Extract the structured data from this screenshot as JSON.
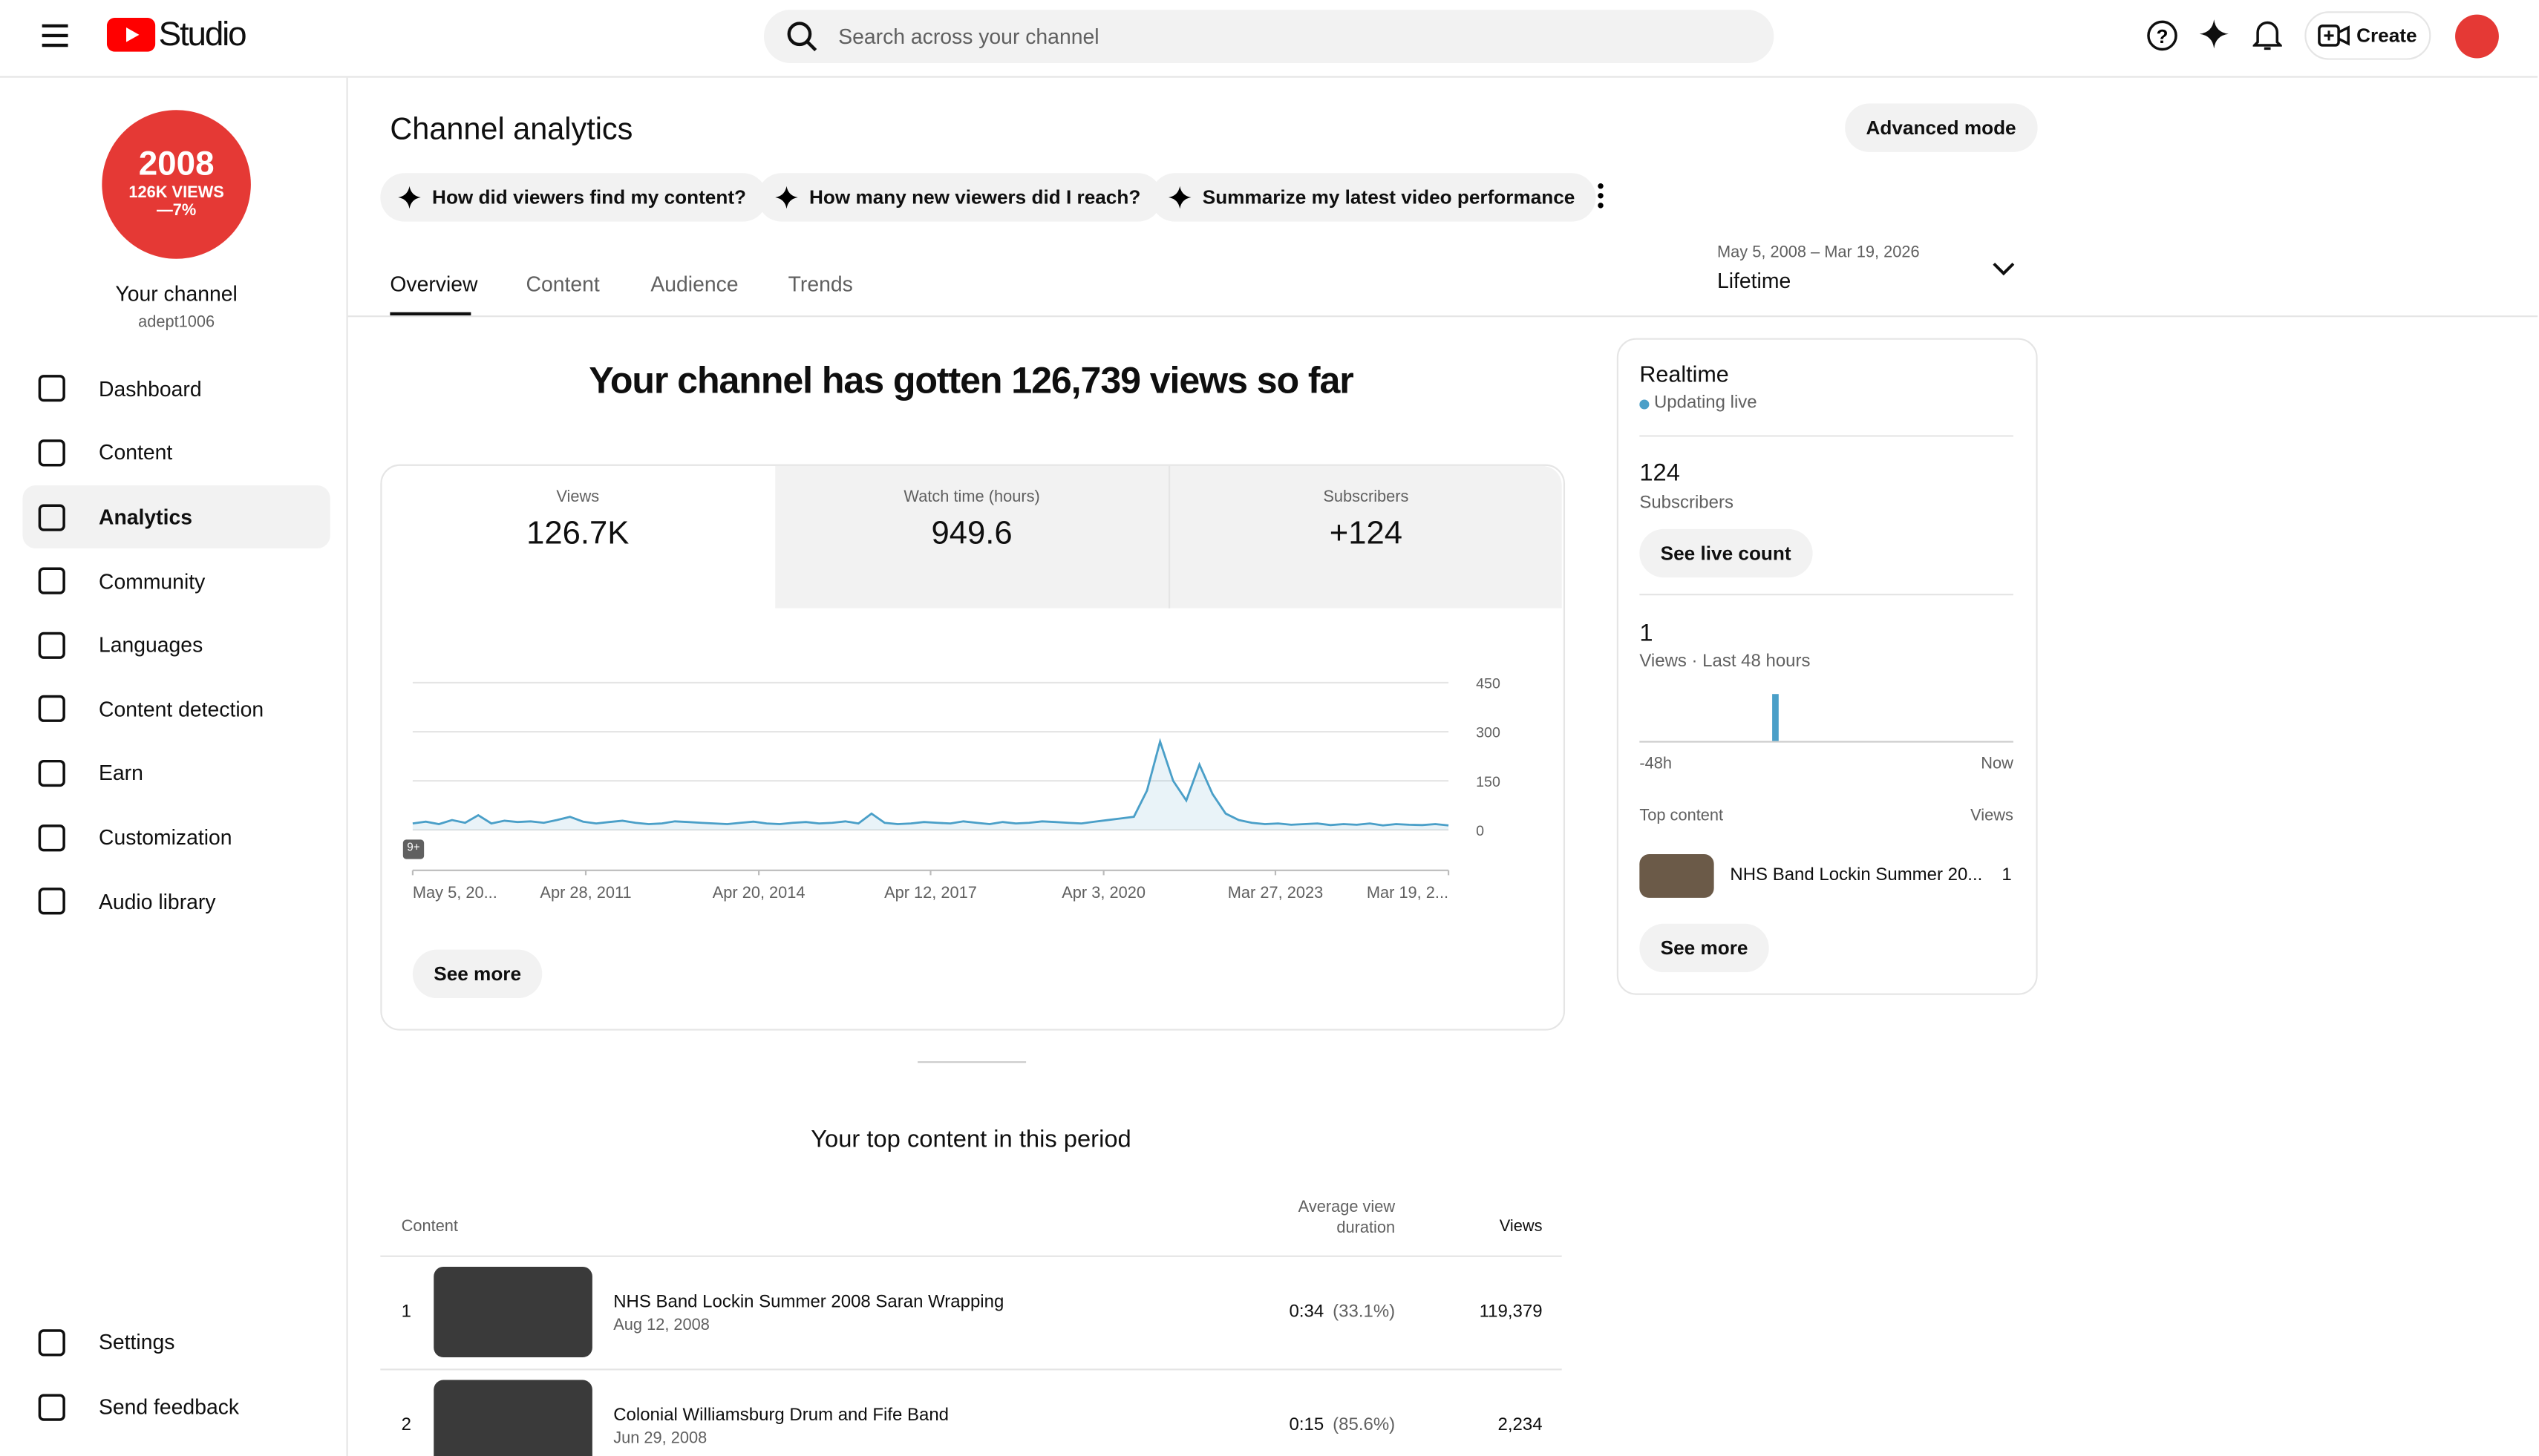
{
  "header": {
    "brand": "Studio",
    "search_placeholder": "Search across your channel",
    "create": "Create"
  },
  "sidebar": {
    "avatar": {
      "year": "2008",
      "line2": "126K VIEWS",
      "line3": "—7%"
    },
    "channel_name": "Your channel",
    "handle": "adept1006",
    "nav": [
      "Dashboard",
      "Content",
      "Analytics",
      "Community",
      "Languages",
      "Content detection",
      "Earn",
      "Customization",
      "Audio library"
    ],
    "footer_nav": [
      "Settings",
      "Send feedback"
    ]
  },
  "main": {
    "title": "Channel analytics",
    "advanced": "Advanced mode",
    "prompts": [
      "How did viewers find my content?",
      "How many new viewers did I reach?",
      "Summarize my latest video performance"
    ],
    "tabs": [
      "Overview",
      "Content",
      "Audience",
      "Trends"
    ],
    "date_range": {
      "range": "May 5, 2008 – Mar 19, 2026",
      "label": "Lifetime"
    },
    "headline": "Your channel has gotten 126,739 views so far",
    "metrics": [
      {
        "label": "Views",
        "value": "126.7K"
      },
      {
        "label": "Watch time (hours)",
        "value": "949.6"
      },
      {
        "label": "Subscribers",
        "value": "+124"
      }
    ],
    "see_more": "See more",
    "top_content": {
      "title": "Your top content in this period",
      "columns": [
        "Content",
        "Average view duration",
        "Views"
      ],
      "rows": [
        {
          "rank": 1,
          "title": "NHS Band Lockin Summer 2008 Saran Wrapping",
          "date": "Aug 12, 2008",
          "duration": "0:34",
          "percent": "(33.1%)",
          "views": "119,379"
        },
        {
          "rank": 2,
          "title": "Colonial Williamsburg Drum and Fife Band",
          "date": "Jun 29, 2008",
          "duration": "0:15",
          "percent": "(85.6%)",
          "views": "2,234"
        }
      ]
    }
  },
  "chart_data": {
    "type": "line",
    "color": "#4a9fc8",
    "annotation": "9+",
    "ylim": [
      0,
      450
    ],
    "yticks": [
      0,
      150,
      300,
      450
    ],
    "xlim": [
      0,
      79
    ],
    "xticks": [
      {
        "value": 0,
        "label": "May 5, 20..."
      },
      {
        "value": 13.2,
        "label": "Apr 28, 2011"
      },
      {
        "value": 26.4,
        "label": "Apr 20, 2014"
      },
      {
        "value": 39.5,
        "label": "Apr 12, 2017"
      },
      {
        "value": 52.7,
        "label": "Apr 3, 2020"
      },
      {
        "value": 65.8,
        "label": "Mar 27, 2023"
      },
      {
        "value": 79,
        "label": "Mar 19, 2..."
      }
    ],
    "values": [
      20,
      25,
      18,
      30,
      22,
      45,
      20,
      28,
      24,
      26,
      22,
      30,
      40,
      25,
      20,
      24,
      28,
      22,
      18,
      20,
      26,
      24,
      22,
      20,
      18,
      22,
      25,
      20,
      18,
      22,
      24,
      20,
      22,
      26,
      20,
      50,
      22,
      18,
      20,
      24,
      22,
      20,
      26,
      22,
      18,
      24,
      20,
      22,
      26,
      24,
      22,
      20,
      25,
      30,
      35,
      40,
      120,
      270,
      150,
      90,
      200,
      110,
      50,
      30,
      22,
      18,
      20,
      16,
      18,
      20,
      15,
      18,
      16,
      20,
      14,
      18,
      16,
      15,
      18,
      14
    ]
  },
  "realtime": {
    "title": "Realtime",
    "status": "Updating live",
    "subscribers_value": "124",
    "subscribers_label": "Subscribers",
    "see_live": "See live count",
    "views_value": 1,
    "views_label": "Views · Last 48 hours",
    "axis_start": "-48h",
    "axis_end": "Now",
    "top_content_label": "Top content",
    "views_col": "Views",
    "item_title": "NHS Band Lockin Summer 20...",
    "item_views": "1",
    "see_more": "See more"
  }
}
